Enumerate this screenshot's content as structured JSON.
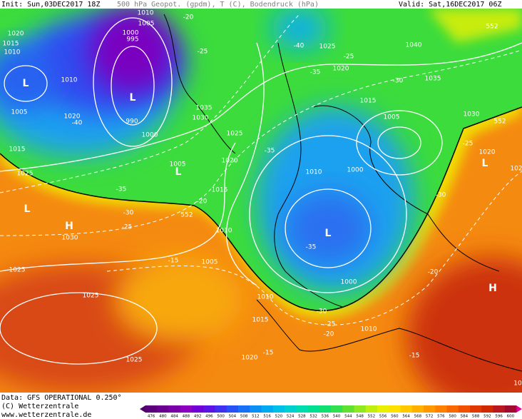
{
  "header": {
    "init": "Init: Sun,03DEC2017 18Z",
    "field": "500 hPa Geopot. (gpdm), T (C), Bodendruck (hPa)",
    "valid": "Valid: Sat,16DEC2017 06Z"
  },
  "map_labels": [
    "1010",
    "1005",
    "1000",
    "995",
    "-20",
    "1020",
    "1015",
    "1010",
    "L",
    "1010",
    "L",
    "990",
    "1005",
    "1020",
    "-40",
    "1000",
    "-25",
    "1035",
    "1030",
    "1025",
    "1020",
    "1005",
    "L",
    "1015",
    "1025",
    "1015",
    "-35",
    "-30",
    "-25",
    "552",
    "-20",
    "L",
    "H",
    "1030",
    "1010",
    "1025",
    "-15",
    "1005",
    "1025",
    "1025",
    "-40",
    "1025",
    "-35",
    "-25",
    "1020",
    "-30",
    "1040",
    "1035",
    "552",
    "1015",
    "1005",
    "1030",
    "552",
    "-35",
    "1010",
    "1000",
    "-25",
    "1020",
    "L",
    "102",
    "-30",
    "L",
    "-35",
    "1000",
    "-20",
    "H",
    "1010",
    "1015",
    "-30",
    "-25",
    "-20",
    "1010",
    "1020",
    "-15",
    "-15",
    "10"
  ],
  "colorbar": {
    "values": [
      476,
      480,
      484,
      488,
      492,
      496,
      500,
      504,
      508,
      512,
      516,
      520,
      524,
      528,
      532,
      536,
      540,
      544,
      548,
      552,
      556,
      560,
      564,
      568,
      572,
      576,
      580,
      584,
      588,
      592,
      596,
      600
    ],
    "colors": [
      "#5a007a",
      "#6a0090",
      "#7a00a8",
      "#8c00c0",
      "#7000d8",
      "#5a14e6",
      "#4030f0",
      "#2850f5",
      "#1870f5",
      "#0a90f5",
      "#00aaf0",
      "#00c0e8",
      "#00d0d0",
      "#00dcb0",
      "#00e090",
      "#10e070",
      "#30e050",
      "#60e030",
      "#90e820",
      "#c0ee10",
      "#e8f000",
      "#ffe000",
      "#ffc800",
      "#ffb000",
      "#ff9800",
      "#ff8000",
      "#f86800",
      "#f05000",
      "#e03800",
      "#d02800",
      "#b81820",
      "#a00c30"
    ]
  },
  "footer": {
    "data": "Data: GFS OPERATIONAL 0.250°",
    "copyright": "(C) Wetterzentrale",
    "url": "www.wetterzentrale.de"
  }
}
